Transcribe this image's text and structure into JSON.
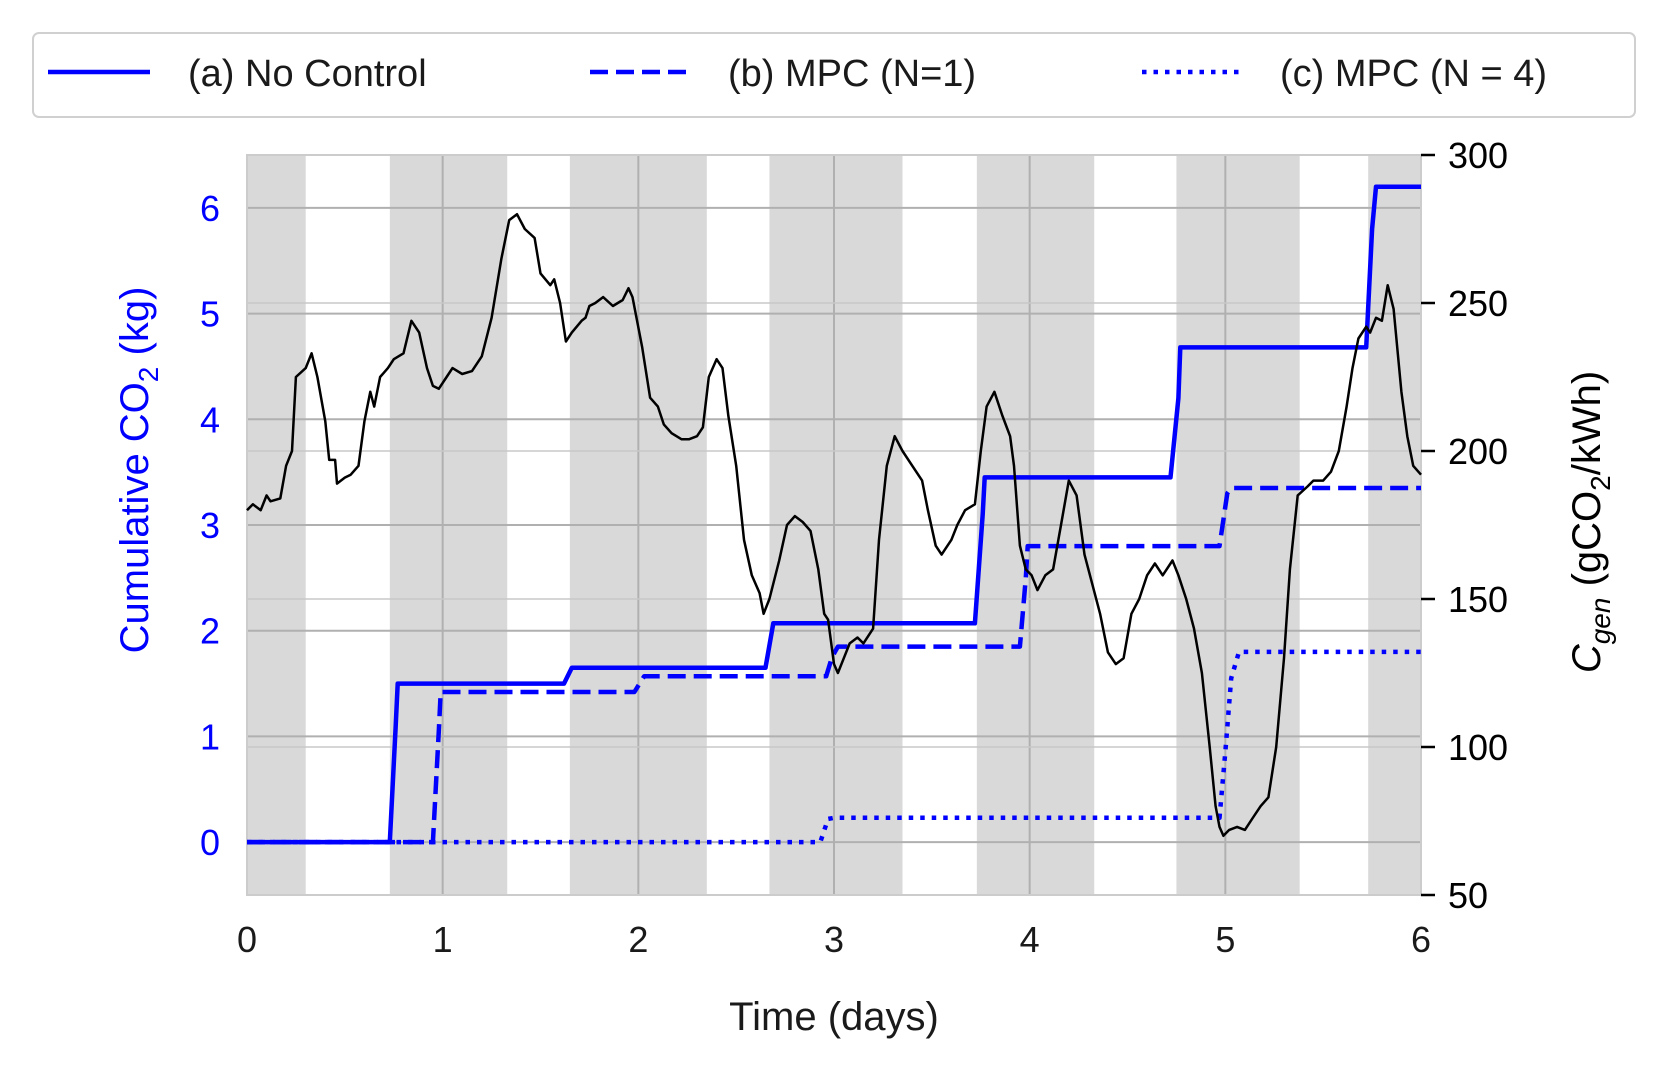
{
  "chart_data": {
    "type": "line",
    "xlabel": "Time (days)",
    "ylabel_left": {
      "pre": "Cumulative CO",
      "sub": "2",
      "post": " (kg)"
    },
    "ylabel_right": {
      "c": "C",
      "c_sub": "gen",
      "mid": " (gCO",
      "sub": "2",
      "post": "/kWh)"
    },
    "xlim": [
      0,
      6
    ],
    "ylim_left": [
      -0.5,
      6.5
    ],
    "ylim_right": [
      50,
      300
    ],
    "x_ticks": [
      "0",
      "1",
      "2",
      "3",
      "4",
      "5",
      "6"
    ],
    "y_ticks_left": [
      "0",
      "1",
      "2",
      "3",
      "4",
      "5",
      "6"
    ],
    "y_ticks_right": [
      "50",
      "100",
      "150",
      "200",
      "250",
      "300"
    ],
    "grid": true,
    "legend": {
      "placement": "top",
      "entries": [
        "(a) No Control",
        "(b) MPC (N=1)",
        "(c) MPC (N = 4)"
      ]
    },
    "colors": {
      "series": "#0000ff",
      "intensity": "#000000",
      "shade": "#d9d9d9",
      "grid": "#b0b0b0",
      "left_axis_text": "#0000ff",
      "right_axis_text": "#000000"
    },
    "shaded_intervals_days": [
      [
        0,
        0.3
      ],
      [
        0.73,
        1.33
      ],
      [
        1.65,
        2.35
      ],
      [
        2.67,
        3.35
      ],
      [
        3.73,
        4.33
      ],
      [
        4.75,
        5.38
      ],
      [
        5.73,
        6.0
      ]
    ],
    "series": [
      {
        "name": "(a) No Control",
        "style": "solid",
        "axis": "left",
        "points": [
          [
            0,
            0
          ],
          [
            0.73,
            0
          ],
          [
            0.76,
            1.1
          ],
          [
            0.77,
            1.5
          ],
          [
            1.62,
            1.5
          ],
          [
            1.66,
            1.65
          ],
          [
            2.65,
            1.65
          ],
          [
            2.69,
            2.07
          ],
          [
            3.72,
            2.07
          ],
          [
            3.76,
            3.1
          ],
          [
            3.77,
            3.45
          ],
          [
            4.72,
            3.45
          ],
          [
            4.76,
            4.2
          ],
          [
            4.77,
            4.68
          ],
          [
            5.72,
            4.68
          ],
          [
            5.75,
            5.8
          ],
          [
            5.77,
            6.2
          ],
          [
            6.0,
            6.2
          ]
        ]
      },
      {
        "name": "(b) MPC (N=1)",
        "style": "dashed",
        "axis": "left",
        "points": [
          [
            0,
            0
          ],
          [
            0.95,
            0
          ],
          [
            0.98,
            1.05
          ],
          [
            0.99,
            1.42
          ],
          [
            1.98,
            1.42
          ],
          [
            2.03,
            1.57
          ],
          [
            2.96,
            1.57
          ],
          [
            2.99,
            1.75
          ],
          [
            3.02,
            1.85
          ],
          [
            3.95,
            1.85
          ],
          [
            3.98,
            2.5
          ],
          [
            3.99,
            2.8
          ],
          [
            4.97,
            2.8
          ],
          [
            5.01,
            3.3
          ],
          [
            5.03,
            3.35
          ],
          [
            6.0,
            3.35
          ]
        ]
      },
      {
        "name": "(c) MPC (N = 4)",
        "style": "dotted",
        "axis": "left",
        "points": [
          [
            0,
            0
          ],
          [
            2.93,
            0
          ],
          [
            2.97,
            0.22
          ],
          [
            3.0,
            0.23
          ],
          [
            4.97,
            0.23
          ],
          [
            5.0,
            0.85
          ],
          [
            5.03,
            1.55
          ],
          [
            5.07,
            1.8
          ],
          [
            6.0,
            1.8
          ]
        ]
      },
      {
        "name": "",
        "style": "solid-thin",
        "axis": "right",
        "points": [
          [
            0,
            180
          ],
          [
            0.03,
            182
          ],
          [
            0.07,
            180
          ],
          [
            0.1,
            185
          ],
          [
            0.12,
            183
          ],
          [
            0.17,
            184
          ],
          [
            0.2,
            195
          ],
          [
            0.23,
            200
          ],
          [
            0.25,
            225
          ],
          [
            0.3,
            228
          ],
          [
            0.33,
            233
          ],
          [
            0.36,
            225
          ],
          [
            0.4,
            210
          ],
          [
            0.42,
            197
          ],
          [
            0.45,
            197
          ],
          [
            0.46,
            189
          ],
          [
            0.5,
            191
          ],
          [
            0.53,
            192
          ],
          [
            0.57,
            195
          ],
          [
            0.6,
            210
          ],
          [
            0.63,
            220
          ],
          [
            0.65,
            215
          ],
          [
            0.68,
            225
          ],
          [
            0.72,
            228
          ],
          [
            0.75,
            231
          ],
          [
            0.8,
            233
          ],
          [
            0.84,
            244
          ],
          [
            0.88,
            240
          ],
          [
            0.92,
            228
          ],
          [
            0.95,
            222
          ],
          [
            0.98,
            221
          ],
          [
            1.02,
            225
          ],
          [
            1.05,
            228
          ],
          [
            1.1,
            226
          ],
          [
            1.15,
            227
          ],
          [
            1.2,
            232
          ],
          [
            1.25,
            245
          ],
          [
            1.3,
            265
          ],
          [
            1.34,
            278
          ],
          [
            1.38,
            280
          ],
          [
            1.42,
            275
          ],
          [
            1.47,
            272
          ],
          [
            1.5,
            260
          ],
          [
            1.55,
            256
          ],
          [
            1.57,
            258
          ],
          [
            1.6,
            250
          ],
          [
            1.63,
            237
          ],
          [
            1.66,
            240
          ],
          [
            1.71,
            244
          ],
          [
            1.73,
            245
          ],
          [
            1.75,
            249
          ],
          [
            1.78,
            250
          ],
          [
            1.82,
            252
          ],
          [
            1.87,
            249
          ],
          [
            1.92,
            251
          ],
          [
            1.95,
            255
          ],
          [
            1.97,
            252
          ],
          [
            2.02,
            235
          ],
          [
            2.06,
            218
          ],
          [
            2.1,
            215
          ],
          [
            2.13,
            209
          ],
          [
            2.17,
            206
          ],
          [
            2.22,
            204
          ],
          [
            2.26,
            204
          ],
          [
            2.3,
            205
          ],
          [
            2.33,
            208
          ],
          [
            2.36,
            225
          ],
          [
            2.4,
            231
          ],
          [
            2.43,
            228
          ],
          [
            2.46,
            212
          ],
          [
            2.5,
            195
          ],
          [
            2.54,
            170
          ],
          [
            2.58,
            158
          ],
          [
            2.62,
            152
          ],
          [
            2.64,
            145
          ],
          [
            2.67,
            150
          ],
          [
            2.72,
            163
          ],
          [
            2.76,
            175
          ],
          [
            2.8,
            178
          ],
          [
            2.84,
            176
          ],
          [
            2.88,
            173
          ],
          [
            2.92,
            160
          ],
          [
            2.95,
            145
          ],
          [
            2.97,
            143
          ],
          [
            3.0,
            128
          ],
          [
            3.02,
            125
          ],
          [
            3.05,
            130
          ],
          [
            3.08,
            135
          ],
          [
            3.12,
            137
          ],
          [
            3.15,
            135
          ],
          [
            3.2,
            140
          ],
          [
            3.23,
            170
          ],
          [
            3.27,
            195
          ],
          [
            3.31,
            205
          ],
          [
            3.35,
            200
          ],
          [
            3.4,
            195
          ],
          [
            3.45,
            190
          ],
          [
            3.48,
            180
          ],
          [
            3.52,
            168
          ],
          [
            3.55,
            165
          ],
          [
            3.6,
            170
          ],
          [
            3.63,
            175
          ],
          [
            3.67,
            180
          ],
          [
            3.72,
            182
          ],
          [
            3.75,
            200
          ],
          [
            3.78,
            215
          ],
          [
            3.82,
            220
          ],
          [
            3.86,
            212
          ],
          [
            3.9,
            205
          ],
          [
            3.92,
            195
          ],
          [
            3.95,
            168
          ],
          [
            3.98,
            160
          ],
          [
            4.01,
            158
          ],
          [
            4.04,
            153
          ],
          [
            4.08,
            158
          ],
          [
            4.12,
            160
          ],
          [
            4.16,
            175
          ],
          [
            4.2,
            190
          ],
          [
            4.24,
            185
          ],
          [
            4.28,
            165
          ],
          [
            4.32,
            155
          ],
          [
            4.36,
            145
          ],
          [
            4.4,
            132
          ],
          [
            4.44,
            128
          ],
          [
            4.48,
            130
          ],
          [
            4.52,
            145
          ],
          [
            4.56,
            150
          ],
          [
            4.6,
            158
          ],
          [
            4.64,
            162
          ],
          [
            4.68,
            158
          ],
          [
            4.7,
            160
          ],
          [
            4.73,
            163
          ],
          [
            4.76,
            158
          ],
          [
            4.8,
            150
          ],
          [
            4.84,
            140
          ],
          [
            4.88,
            125
          ],
          [
            4.92,
            100
          ],
          [
            4.95,
            80
          ],
          [
            4.97,
            73
          ],
          [
            4.99,
            70
          ],
          [
            5.02,
            72
          ],
          [
            5.06,
            73
          ],
          [
            5.1,
            72
          ],
          [
            5.14,
            76
          ],
          [
            5.18,
            80
          ],
          [
            5.22,
            83
          ],
          [
            5.26,
            100
          ],
          [
            5.3,
            130
          ],
          [
            5.33,
            160
          ],
          [
            5.37,
            185
          ],
          [
            5.42,
            188
          ],
          [
            5.45,
            190
          ],
          [
            5.5,
            190
          ],
          [
            5.54,
            193
          ],
          [
            5.58,
            200
          ],
          [
            5.62,
            215
          ],
          [
            5.65,
            228
          ],
          [
            5.68,
            238
          ],
          [
            5.72,
            242
          ],
          [
            5.74,
            240
          ],
          [
            5.77,
            245
          ],
          [
            5.8,
            244
          ],
          [
            5.83,
            256
          ],
          [
            5.86,
            248
          ],
          [
            5.9,
            220
          ],
          [
            5.93,
            205
          ],
          [
            5.96,
            195
          ],
          [
            6.0,
            192
          ]
        ]
      }
    ]
  }
}
